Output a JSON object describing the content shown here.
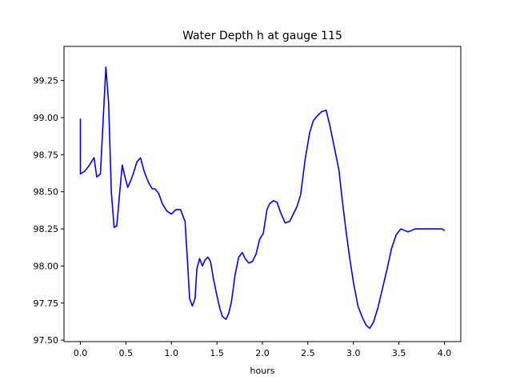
{
  "chart_data": {
    "type": "line",
    "title": "Water Depth h at gauge 115",
    "xlabel": "hours",
    "ylabel": "",
    "xlim": [
      -0.18,
      4.18
    ],
    "ylim": [
      97.49,
      99.48
    ],
    "xticks": [
      {
        "value": 0.0,
        "label": "0.0"
      },
      {
        "value": 0.5,
        "label": "0.5"
      },
      {
        "value": 1.0,
        "label": "1.0"
      },
      {
        "value": 1.5,
        "label": "1.5"
      },
      {
        "value": 2.0,
        "label": "2.0"
      },
      {
        "value": 2.5,
        "label": "2.5"
      },
      {
        "value": 3.0,
        "label": "3.0"
      },
      {
        "value": 3.5,
        "label": "3.5"
      },
      {
        "value": 4.0,
        "label": "4.0"
      }
    ],
    "yticks": [
      {
        "value": 97.5,
        "label": "97.50"
      },
      {
        "value": 97.75,
        "label": "97.75"
      },
      {
        "value": 98.0,
        "label": "98.00"
      },
      {
        "value": 98.25,
        "label": "98.25"
      },
      {
        "value": 98.5,
        "label": "98.50"
      },
      {
        "value": 98.75,
        "label": "98.75"
      },
      {
        "value": 99.0,
        "label": "99.00"
      },
      {
        "value": 99.25,
        "label": "99.25"
      }
    ],
    "grid": false,
    "series": [
      {
        "color": "#0000ff",
        "x": [
          0.0,
          0.0,
          0.05,
          0.1,
          0.15,
          0.18,
          0.22,
          0.25,
          0.28,
          0.31,
          0.34,
          0.37,
          0.4,
          0.43,
          0.46,
          0.49,
          0.52,
          0.55,
          0.58,
          0.62,
          0.66,
          0.7,
          0.73,
          0.76,
          0.79,
          0.82,
          0.86,
          0.9,
          0.95,
          1.0,
          1.05,
          1.1,
          1.15,
          1.18,
          1.2,
          1.23,
          1.26,
          1.28,
          1.31,
          1.34,
          1.37,
          1.4,
          1.43,
          1.46,
          1.5,
          1.53,
          1.56,
          1.6,
          1.63,
          1.66,
          1.7,
          1.74,
          1.78,
          1.81,
          1.85,
          1.89,
          1.93,
          1.97,
          2.01,
          2.05,
          2.08,
          2.12,
          2.16,
          2.2,
          2.25,
          2.3,
          2.34,
          2.38,
          2.42,
          2.47,
          2.52,
          2.56,
          2.6,
          2.65,
          2.7,
          2.74,
          2.79,
          2.84,
          2.88,
          2.92,
          2.96,
          3.0,
          3.05,
          3.1,
          3.14,
          3.18,
          3.22,
          3.27,
          3.32,
          3.37,
          3.42,
          3.47,
          3.52,
          3.56,
          3.6,
          3.64,
          3.68,
          3.72,
          3.76,
          3.8,
          3.85,
          3.9,
          3.94,
          3.97,
          4.0
        ],
        "y": [
          98.99,
          98.62,
          98.64,
          98.68,
          98.73,
          98.6,
          98.62,
          98.98,
          99.34,
          99.1,
          98.5,
          98.26,
          98.27,
          98.48,
          98.68,
          98.6,
          98.53,
          98.57,
          98.62,
          98.7,
          98.73,
          98.64,
          98.59,
          98.55,
          98.52,
          98.52,
          98.49,
          98.42,
          98.37,
          98.35,
          98.38,
          98.38,
          98.3,
          98.0,
          97.78,
          97.73,
          97.78,
          97.98,
          98.05,
          98.0,
          98.04,
          98.06,
          98.03,
          97.92,
          97.8,
          97.72,
          97.66,
          97.64,
          97.68,
          97.76,
          97.94,
          98.06,
          98.09,
          98.05,
          98.02,
          98.03,
          98.08,
          98.18,
          98.22,
          98.38,
          98.42,
          98.44,
          98.43,
          98.36,
          98.29,
          98.3,
          98.35,
          98.4,
          98.48,
          98.72,
          98.9,
          98.98,
          99.01,
          99.04,
          99.05,
          98.95,
          98.8,
          98.65,
          98.43,
          98.23,
          98.05,
          97.89,
          97.73,
          97.65,
          97.6,
          97.58,
          97.62,
          97.72,
          97.85,
          97.98,
          98.12,
          98.21,
          98.25,
          98.24,
          98.23,
          98.24,
          98.25,
          98.25,
          98.25,
          98.25,
          98.25,
          98.25,
          98.25,
          98.25,
          98.24
        ]
      }
    ]
  }
}
